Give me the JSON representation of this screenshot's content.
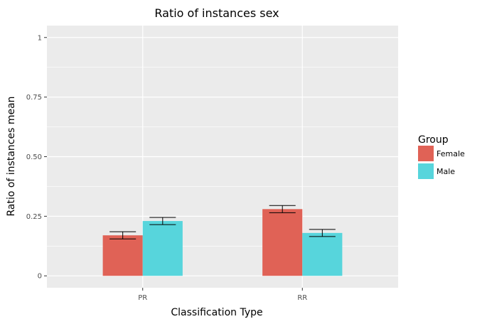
{
  "chart_data": {
    "type": "bar",
    "title": "Ratio of instances sex",
    "xlabel": "Classification Type",
    "ylabel": "Ratio of instances mean",
    "categories": [
      "PR",
      "RR"
    ],
    "ylim": [
      -0.05,
      1.05
    ],
    "yticks": [
      0,
      0.25,
      0.5,
      0.75,
      1
    ],
    "ytick_labels": [
      "0",
      "0.25",
      "0.50",
      "0.75",
      "1"
    ],
    "grid": true,
    "legend": {
      "title": "Group",
      "position": "right"
    },
    "series": [
      {
        "name": "Female",
        "color": "#E06256",
        "values": [
          0.17,
          0.28
        ],
        "err_low": [
          0.155,
          0.265
        ],
        "err_high": [
          0.185,
          0.295
        ]
      },
      {
        "name": "Male",
        "color": "#57D5DC",
        "values": [
          0.23,
          0.18
        ],
        "err_low": [
          0.215,
          0.165
        ],
        "err_high": [
          0.245,
          0.195
        ]
      }
    ],
    "colors": {
      "panel": "#EBEBEB",
      "grid": "#FFFFFF",
      "error_bar": "#000000"
    }
  }
}
